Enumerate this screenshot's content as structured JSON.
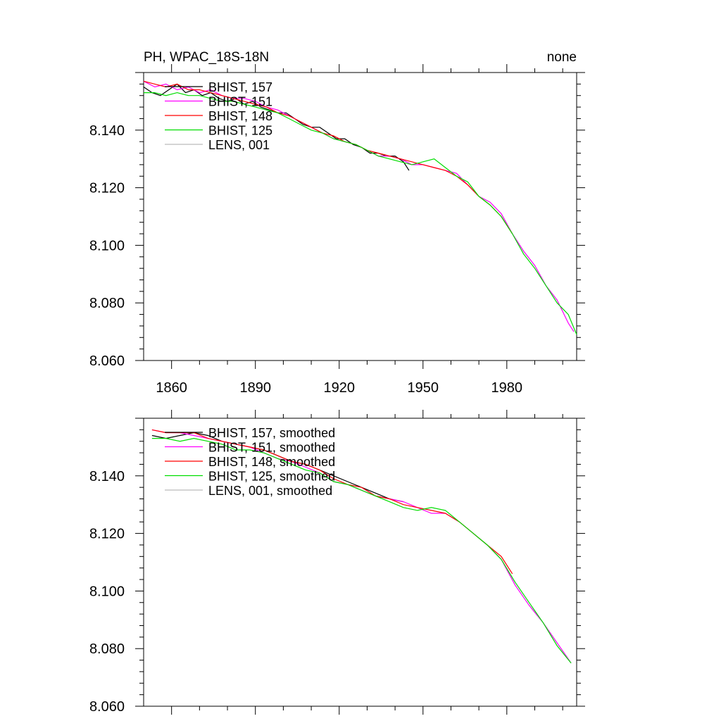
{
  "header": {
    "left_title": "PH, WPAC_18S-18N",
    "right_title": "none"
  },
  "colors": {
    "BHIST_157": "#000000",
    "BHIST_151": "#ff00ff",
    "BHIST_148": "#ff0000",
    "BHIST_125": "#00dd00",
    "LENS_001": "#bbbbbb"
  },
  "chart_data": [
    {
      "type": "line",
      "title": "PH, WPAC_18S-18N",
      "right_label": "none",
      "xlim": [
        1850,
        2005
      ],
      "ylim": [
        8.06,
        8.16
      ],
      "x_ticks": [
        1860,
        1890,
        1920,
        1950,
        1980
      ],
      "x_tick_labels": [
        "1860",
        "1890",
        "1920",
        "1950",
        "1980"
      ],
      "y_ticks": [
        8.06,
        8.08,
        8.1,
        8.12,
        8.14
      ],
      "y_tick_labels": [
        "8.060",
        "8.080",
        "8.100",
        "8.120",
        "8.140"
      ],
      "legend": [
        "BHIST, 157",
        "BHIST, 151",
        "BHIST, 148",
        "BHIST, 125",
        "LENS, 001"
      ],
      "legend_placement": "top-left",
      "series": [
        {
          "name": "BHIST, 157",
          "color": "#000000",
          "x": [
            1850,
            1853,
            1856,
            1859,
            1862,
            1865,
            1868,
            1871,
            1874,
            1877,
            1880,
            1883,
            1886,
            1889,
            1892,
            1895,
            1898,
            1901,
            1904,
            1907,
            1910,
            1913,
            1916,
            1919,
            1922,
            1925,
            1928,
            1931,
            1934,
            1937,
            1940,
            1943,
            1945
          ],
          "y": [
            8.155,
            8.153,
            8.152,
            8.154,
            8.156,
            8.153,
            8.154,
            8.152,
            8.153,
            8.151,
            8.15,
            8.151,
            8.149,
            8.15,
            8.148,
            8.147,
            8.146,
            8.146,
            8.144,
            8.142,
            8.141,
            8.141,
            8.139,
            8.137,
            8.137,
            8.135,
            8.134,
            8.132,
            8.132,
            8.131,
            8.131,
            8.129,
            8.126
          ]
        },
        {
          "name": "BHIST, 151",
          "color": "#ff00ff",
          "x": [
            1850,
            1854,
            1858,
            1862,
            1866,
            1870,
            1874,
            1878,
            1882,
            1886,
            1890,
            1894,
            1898,
            1902,
            1906,
            1910,
            1914,
            1918,
            1922,
            1926,
            1930,
            1934,
            1938,
            1942,
            1946,
            1950,
            1954,
            1958,
            1962,
            1966,
            1970,
            1974,
            1978,
            1982,
            1986,
            1990,
            1994,
            1998,
            2002,
            2004
          ],
          "y": [
            8.157,
            8.155,
            8.156,
            8.154,
            8.155,
            8.153,
            8.154,
            8.152,
            8.151,
            8.151,
            8.15,
            8.148,
            8.147,
            8.145,
            8.143,
            8.141,
            8.139,
            8.137,
            8.136,
            8.135,
            8.133,
            8.131,
            8.131,
            8.13,
            8.128,
            8.128,
            8.127,
            8.126,
            8.125,
            8.121,
            8.117,
            8.115,
            8.111,
            8.104,
            8.098,
            8.093,
            8.086,
            8.081,
            8.073,
            8.07
          ]
        },
        {
          "name": "BHIST, 148",
          "color": "#ff0000",
          "x": [
            1850,
            1854,
            1858,
            1862,
            1866,
            1870,
            1874,
            1878,
            1882,
            1886,
            1890,
            1894,
            1898,
            1902,
            1906,
            1910,
            1914,
            1918,
            1922,
            1926,
            1930,
            1934,
            1938,
            1942,
            1946,
            1950,
            1954,
            1958,
            1962,
            1966,
            1970,
            1974,
            1978,
            1982
          ],
          "y": [
            8.157,
            8.156,
            8.155,
            8.156,
            8.154,
            8.154,
            8.153,
            8.152,
            8.151,
            8.15,
            8.149,
            8.148,
            8.146,
            8.145,
            8.143,
            8.141,
            8.139,
            8.138,
            8.136,
            8.135,
            8.133,
            8.132,
            8.131,
            8.13,
            8.129,
            8.128,
            8.127,
            8.126,
            8.124,
            8.121,
            8.117,
            8.114,
            8.11,
            8.104
          ]
        },
        {
          "name": "BHIST, 125",
          "color": "#00dd00",
          "x": [
            1850,
            1854,
            1858,
            1862,
            1866,
            1870,
            1874,
            1878,
            1882,
            1886,
            1890,
            1894,
            1898,
            1902,
            1906,
            1910,
            1914,
            1918,
            1922,
            1926,
            1930,
            1934,
            1938,
            1942,
            1946,
            1950,
            1954,
            1958,
            1962,
            1966,
            1970,
            1974,
            1978,
            1982,
            1986,
            1990,
            1994,
            1998,
            2002,
            2005
          ],
          "y": [
            8.153,
            8.153,
            8.152,
            8.153,
            8.152,
            8.152,
            8.151,
            8.15,
            8.15,
            8.149,
            8.148,
            8.147,
            8.146,
            8.144,
            8.142,
            8.14,
            8.139,
            8.137,
            8.136,
            8.135,
            8.133,
            8.131,
            8.13,
            8.129,
            8.128,
            8.129,
            8.13,
            8.127,
            8.124,
            8.122,
            8.117,
            8.114,
            8.11,
            8.104,
            8.097,
            8.092,
            8.086,
            8.08,
            8.076,
            8.069
          ]
        }
      ]
    },
    {
      "type": "line",
      "xlim": [
        1850,
        2005
      ],
      "ylim": [
        8.06,
        8.16
      ],
      "y_ticks": [
        8.06,
        8.08,
        8.1,
        8.12,
        8.14
      ],
      "y_tick_labels": [
        "8.060",
        "8.080",
        "8.100",
        "8.120",
        "8.140"
      ],
      "legend": [
        "BHIST, 157, smoothed",
        "BHIST, 151, smoothed",
        "BHIST, 148, smoothed",
        "BHIST, 125, smoothed",
        "LENS, 001, smoothed"
      ],
      "legend_placement": "top-left",
      "series": [
        {
          "name": "BHIST, 157, smoothed",
          "color": "#000000",
          "x": [
            1853,
            1858,
            1863,
            1868,
            1873,
            1878,
            1883,
            1888,
            1893,
            1898,
            1903,
            1908,
            1913,
            1918,
            1923,
            1928,
            1933,
            1938,
            1943
          ],
          "y": [
            8.154,
            8.153,
            8.154,
            8.155,
            8.154,
            8.152,
            8.151,
            8.15,
            8.149,
            8.147,
            8.145,
            8.144,
            8.142,
            8.14,
            8.138,
            8.136,
            8.134,
            8.132,
            8.131
          ]
        },
        {
          "name": "BHIST, 151, smoothed",
          "color": "#ff00ff",
          "x": [
            1853,
            1858,
            1863,
            1868,
            1873,
            1878,
            1883,
            1888,
            1893,
            1898,
            1903,
            1908,
            1913,
            1918,
            1923,
            1928,
            1933,
            1938,
            1943,
            1948,
            1953,
            1958,
            1963,
            1968,
            1973,
            1978,
            1983,
            1988,
            1993,
            1998,
            2003
          ],
          "y": [
            8.156,
            8.155,
            8.155,
            8.154,
            8.153,
            8.152,
            8.151,
            8.15,
            8.148,
            8.146,
            8.145,
            8.143,
            8.141,
            8.138,
            8.137,
            8.135,
            8.133,
            8.132,
            8.131,
            8.129,
            8.127,
            8.127,
            8.124,
            8.12,
            8.116,
            8.111,
            8.102,
            8.095,
            8.089,
            8.082,
            8.075
          ]
        },
        {
          "name": "BHIST, 148, smoothed",
          "color": "#ff0000",
          "x": [
            1853,
            1858,
            1863,
            1868,
            1873,
            1878,
            1883,
            1888,
            1893,
            1898,
            1903,
            1908,
            1913,
            1918,
            1923,
            1928,
            1933,
            1938,
            1943,
            1948,
            1953,
            1958,
            1963,
            1968,
            1973,
            1978,
            1982
          ],
          "y": [
            8.156,
            8.155,
            8.155,
            8.155,
            8.153,
            8.152,
            8.151,
            8.15,
            8.149,
            8.147,
            8.145,
            8.144,
            8.142,
            8.139,
            8.137,
            8.136,
            8.133,
            8.132,
            8.13,
            8.129,
            8.128,
            8.127,
            8.124,
            8.12,
            8.116,
            8.112,
            8.106
          ]
        },
        {
          "name": "BHIST, 125, smoothed",
          "color": "#00dd00",
          "x": [
            1853,
            1858,
            1863,
            1868,
            1873,
            1878,
            1883,
            1888,
            1893,
            1898,
            1903,
            1908,
            1913,
            1918,
            1923,
            1928,
            1933,
            1938,
            1943,
            1948,
            1953,
            1958,
            1963,
            1968,
            1973,
            1978,
            1983,
            1988,
            1993,
            1998,
            2003
          ],
          "y": [
            8.153,
            8.153,
            8.152,
            8.153,
            8.152,
            8.151,
            8.149,
            8.149,
            8.148,
            8.146,
            8.144,
            8.142,
            8.141,
            8.138,
            8.137,
            8.135,
            8.133,
            8.131,
            8.129,
            8.128,
            8.129,
            8.128,
            8.124,
            8.12,
            8.116,
            8.111,
            8.103,
            8.096,
            8.089,
            8.081,
            8.075
          ]
        }
      ]
    }
  ]
}
